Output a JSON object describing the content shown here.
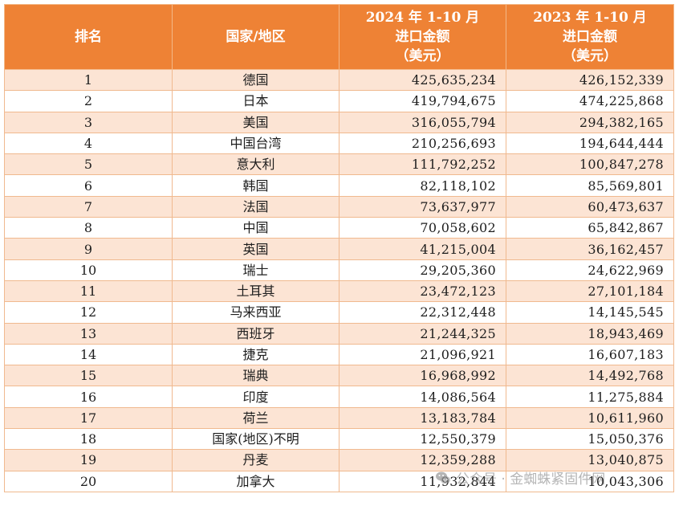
{
  "table": {
    "headers": {
      "rank": "排名",
      "country": "国家/地区",
      "col2024": [
        "2024 年 1-10 月",
        "进口金额",
        "（美元）"
      ],
      "col2023": [
        "2023 年 1-10 月",
        "进口金额",
        "（美元）"
      ]
    },
    "rows": [
      {
        "rank": "1",
        "country": "德国",
        "v2024": "425,635,234",
        "v2023": "426,152,339"
      },
      {
        "rank": "2",
        "country": "日本",
        "v2024": "419,794,675",
        "v2023": "474,225,868"
      },
      {
        "rank": "3",
        "country": "美国",
        "v2024": "316,055,794",
        "v2023": "294,382,165"
      },
      {
        "rank": "4",
        "country": "中国台湾",
        "v2024": "210,256,693",
        "v2023": "194,644,444"
      },
      {
        "rank": "5",
        "country": "意大利",
        "v2024": "111,792,252",
        "v2023": "100,847,278"
      },
      {
        "rank": "6",
        "country": "韩国",
        "v2024": "82,118,102",
        "v2023": "85,569,801"
      },
      {
        "rank": "7",
        "country": "法国",
        "v2024": "73,637,977",
        "v2023": "60,473,637"
      },
      {
        "rank": "8",
        "country": "中国",
        "v2024": "70,058,602",
        "v2023": "65,842,867"
      },
      {
        "rank": "9",
        "country": "英国",
        "v2024": "41,215,004",
        "v2023": "36,162,457"
      },
      {
        "rank": "10",
        "country": "瑞士",
        "v2024": "29,205,360",
        "v2023": "24,622,969"
      },
      {
        "rank": "11",
        "country": "土耳其",
        "v2024": "23,472,123",
        "v2023": "27,101,184"
      },
      {
        "rank": "12",
        "country": "马来西亚",
        "v2024": "22,312,448",
        "v2023": "14,145,545"
      },
      {
        "rank": "13",
        "country": "西班牙",
        "v2024": "21,244,325",
        "v2023": "18,943,469"
      },
      {
        "rank": "14",
        "country": "捷克",
        "v2024": "21,096,921",
        "v2023": "16,607,183"
      },
      {
        "rank": "15",
        "country": "瑞典",
        "v2024": "16,968,992",
        "v2023": "14,492,768"
      },
      {
        "rank": "16",
        "country": "印度",
        "v2024": "14,086,564",
        "v2023": "11,275,884"
      },
      {
        "rank": "17",
        "country": "荷兰",
        "v2024": "13,183,784",
        "v2023": "10,611,960"
      },
      {
        "rank": "18",
        "country": "国家(地区)不明",
        "v2024": "12,550,379",
        "v2023": "15,050,376"
      },
      {
        "rank": "19",
        "country": "丹麦",
        "v2024": "12,359,288",
        "v2023": "13,040,875"
      },
      {
        "rank": "20",
        "country": "加拿大",
        "v2024": "11,932,844",
        "v2023": "10,043,306"
      }
    ]
  },
  "watermark": {
    "text": "公众号 · 金蜘蛛紧固件网",
    "icon": "wechat-icon"
  }
}
